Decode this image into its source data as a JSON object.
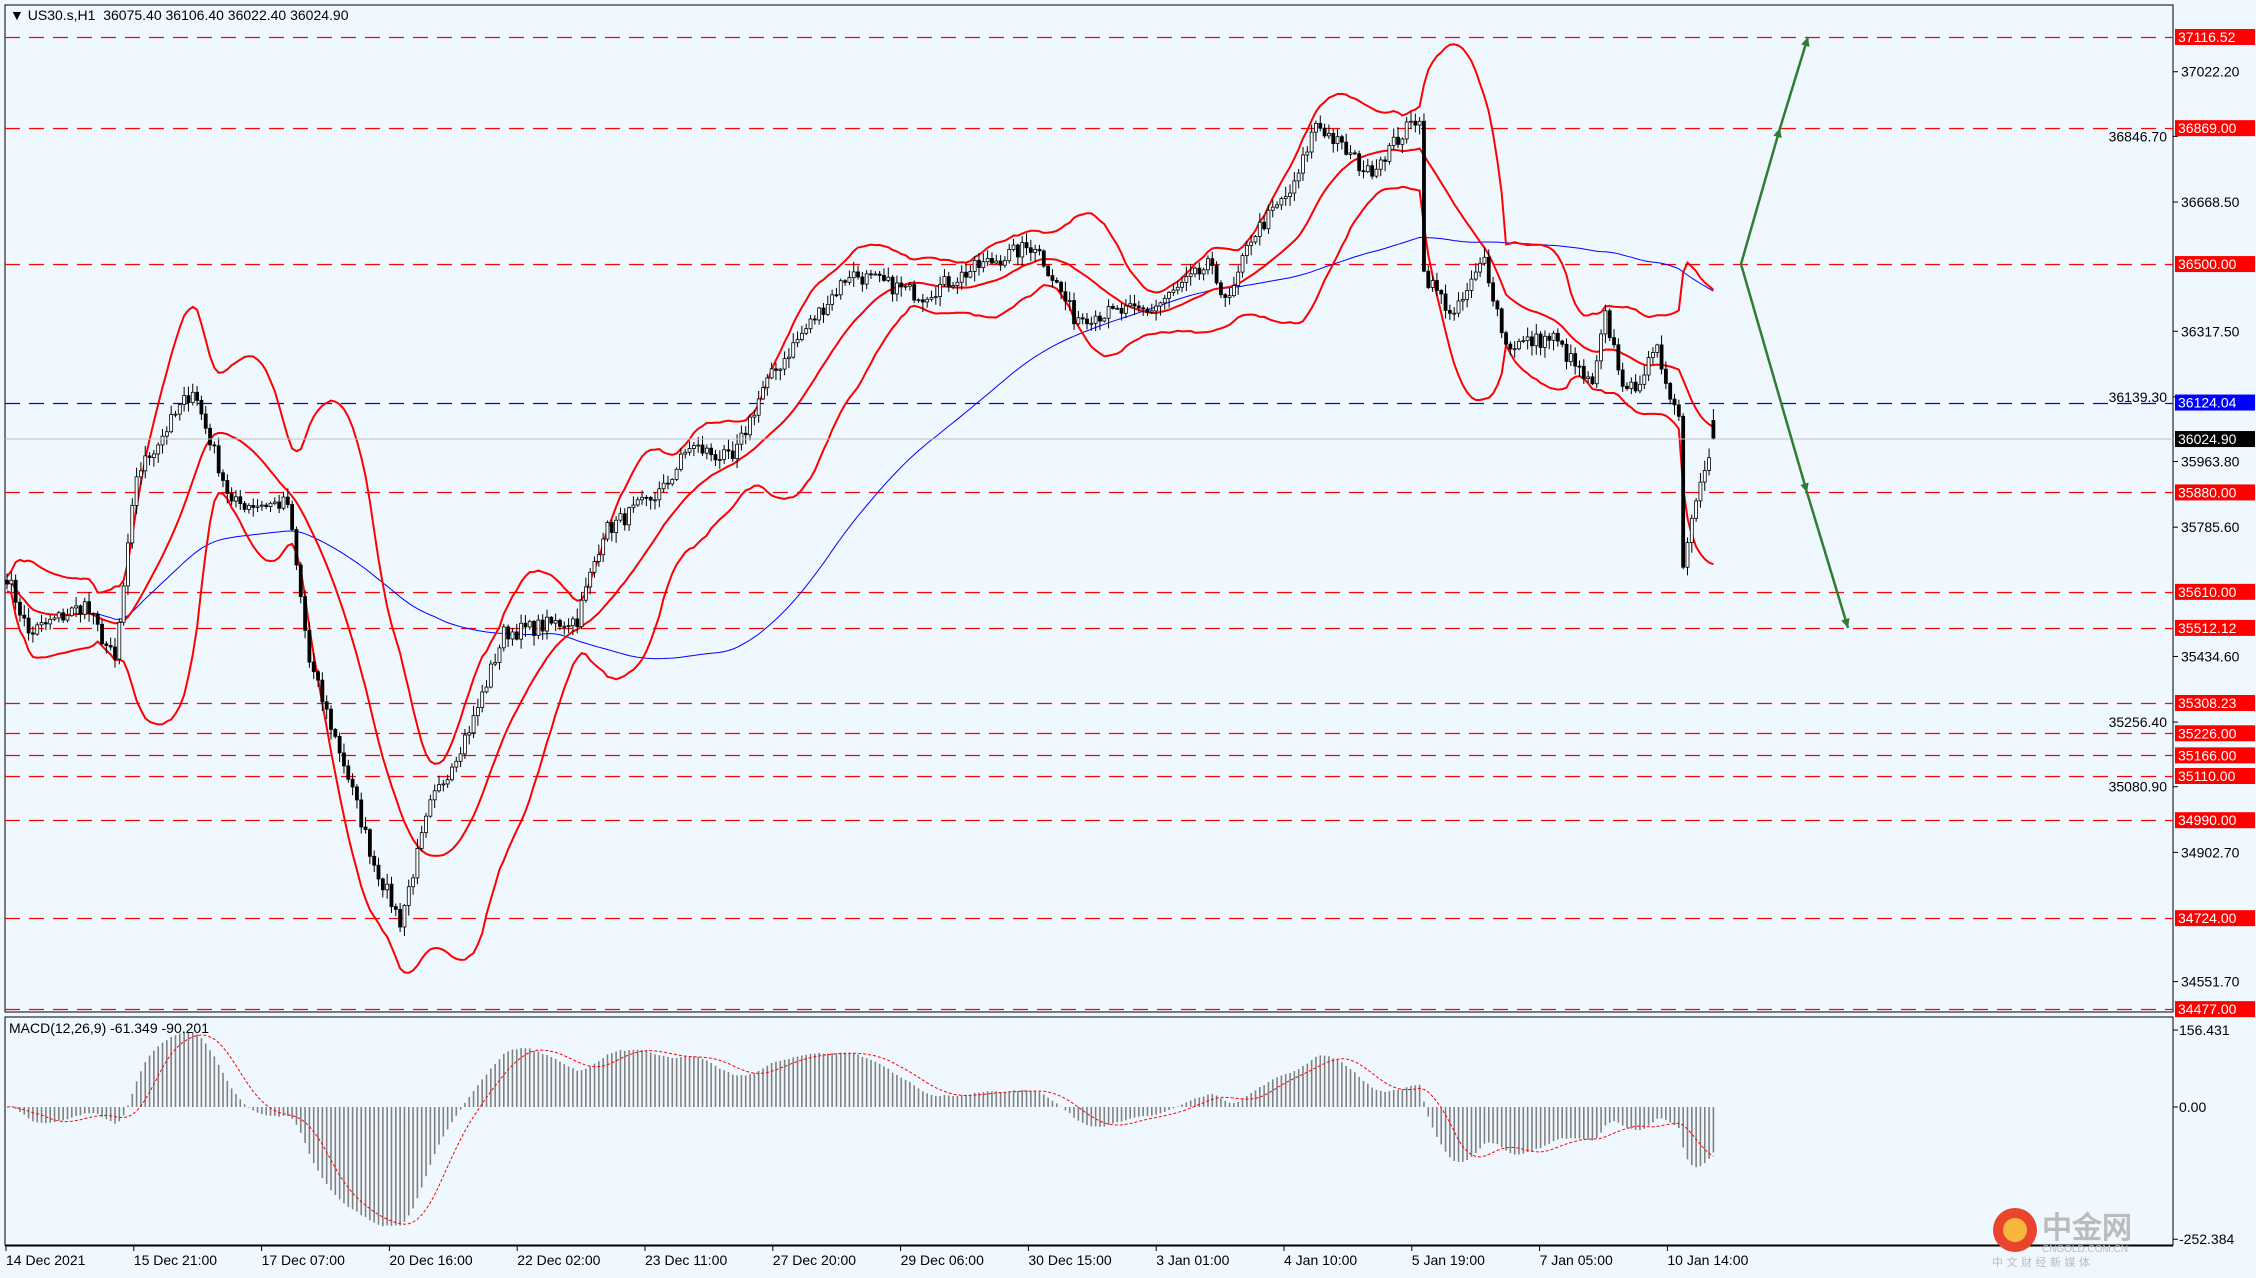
{
  "header": {
    "symbol": "US30.s,H1",
    "ohlc": "36075.40 36106.40 36022.40 36024.90"
  },
  "macd": {
    "label": "MACD(12,26,9) -61.349 -90.201",
    "axis_ticks": [
      "156.431",
      "0.00",
      "-252.384"
    ]
  },
  "watermark": {
    "brand": "中金网",
    "domain": "CNGOLD.COM.CN",
    "tagline": "中 文 财 经 新 媒 体"
  },
  "colors": {
    "background": "#f0f8ff",
    "levels": "#ff0000",
    "blue_level": "#0000ff",
    "bollinger": "#ff0000",
    "moving_average": "#0000ff",
    "arrows": "#2e7d32",
    "bull_candle": "#ffffff",
    "bear_candle": "#000000"
  },
  "chart_data": {
    "type": "candlestick",
    "symbol": "US30.s",
    "timeframe": "H1",
    "last_price": "36024.90",
    "ylim": [
      34440,
      37200
    ],
    "price_axis_ticks": [
      "37022.20",
      "36846.70",
      "36668.50",
      "36317.50",
      "36139.30",
      "35963.80",
      "35785.60",
      "35434.60",
      "35256.40",
      "35080.90",
      "34902.70",
      "34551.70"
    ],
    "x_tick_labels": [
      "14 Dec 2021",
      "15 Dec 21:00",
      "17 Dec 07:00",
      "20 Dec 16:00",
      "22 Dec 02:00",
      "23 Dec 11:00",
      "27 Dec 20:00",
      "29 Dec 06:00",
      "30 Dec 15:00",
      "3 Jan 01:00",
      "4 Jan 10:00",
      "5 Jan 19:00",
      "7 Jan 05:00",
      "10 Jan 14:00"
    ],
    "close_path_bar_price": [
      [
        0,
        35654
      ],
      [
        5,
        35497
      ],
      [
        18,
        35575
      ],
      [
        25,
        35419
      ],
      [
        30,
        35928
      ],
      [
        43,
        36162
      ],
      [
        52,
        35849
      ],
      [
        65,
        35849
      ],
      [
        70,
        35419
      ],
      [
        78,
        35145
      ],
      [
        85,
        34872
      ],
      [
        91,
        34716
      ],
      [
        98,
        35028
      ],
      [
        108,
        35263
      ],
      [
        115,
        35497
      ],
      [
        132,
        35536
      ],
      [
        138,
        35771
      ],
      [
        152,
        35888
      ],
      [
        158,
        36006
      ],
      [
        168,
        35966
      ],
      [
        175,
        36162
      ],
      [
        182,
        36279
      ],
      [
        195,
        36475
      ],
      [
        212,
        36416
      ],
      [
        225,
        36494
      ],
      [
        238,
        36553
      ],
      [
        247,
        36357
      ],
      [
        265,
        36377
      ],
      [
        278,
        36494
      ],
      [
        283,
        36397
      ],
      [
        288,
        36573
      ],
      [
        298,
        36709
      ],
      [
        303,
        36885
      ],
      [
        315,
        36748
      ],
      [
        327,
        36905
      ],
      [
        328,
        36475
      ],
      [
        335,
        36357
      ],
      [
        342,
        36514
      ],
      [
        347,
        36279
      ],
      [
        358,
        36299
      ],
      [
        367,
        36162
      ],
      [
        370,
        36357
      ],
      [
        375,
        36142
      ],
      [
        382,
        36260
      ],
      [
        387,
        36084
      ],
      [
        388,
        35693
      ],
      [
        392,
        35928
      ],
      [
        395,
        36024.9
      ]
    ],
    "horizontal_levels": [
      {
        "price": "37116.52",
        "color": "#ff0000"
      },
      {
        "price": "36869.00",
        "color": "#ff0000"
      },
      {
        "price": "36500.00",
        "color": "#ff0000"
      },
      {
        "price": "36124.04",
        "color": "#0000ff"
      },
      {
        "price": "35880.00",
        "color": "#ff0000"
      },
      {
        "price": "35610.00",
        "color": "#ff0000"
      },
      {
        "price": "35512.12",
        "color": "#ff0000"
      },
      {
        "price": "35308.23",
        "color": "#ff0000"
      },
      {
        "price": "35226.00",
        "color": "#ff0000"
      },
      {
        "price": "35166.00",
        "color": "#ff0000"
      },
      {
        "price": "35110.00",
        "color": "#ff0000"
      },
      {
        "price": "34990.00",
        "color": "#ff0000"
      },
      {
        "price": "34724.00",
        "color": "#ff0000"
      },
      {
        "price": "34477.00",
        "color": "#ff0000"
      }
    ],
    "indicators": [
      "Bollinger Bands (red)",
      "Moving average (blue)",
      "MACD(12,26,9)"
    ],
    "arrows": [
      {
        "direction": "up",
        "from_price": 36500,
        "via_price": 36869,
        "to_price": 37116.52
      },
      {
        "direction": "down",
        "from_price": 36500,
        "via_price": 35880,
        "to_price": 35512.12
      }
    ]
  }
}
